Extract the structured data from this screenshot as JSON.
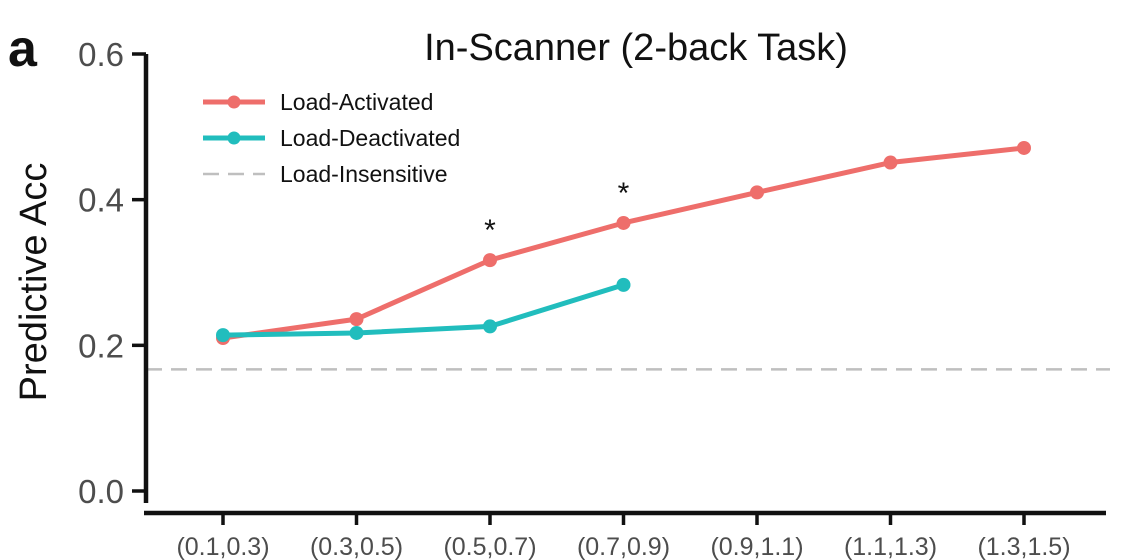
{
  "chart_data": {
    "type": "line",
    "panel_label": "a",
    "title": "In-Scanner (2-back Task)",
    "xlabel": "",
    "ylabel": "Predictive Acc",
    "categories": [
      "(0.1,0.3)",
      "(0.3,0.5)",
      "(0.5,0.7)",
      "(0.7,0.9)",
      "(0.9,1.1)",
      "(1.1,1.3)",
      "(1.3,1.5)"
    ],
    "ylim": [
      0.0,
      0.6
    ],
    "yticks": [
      "0.0",
      "0.2",
      "0.4",
      "0.6"
    ],
    "ytick_values": [
      0.0,
      0.2,
      0.4,
      0.6
    ],
    "series": [
      {
        "name": "Load-Activated",
        "color": "#ee6e6b",
        "values": [
          0.21,
          0.236,
          0.317,
          0.368,
          0.41,
          0.451,
          0.471
        ]
      },
      {
        "name": "Load-Deactivated",
        "color": "#21bdbd",
        "values": [
          0.214,
          0.217,
          0.226,
          0.283,
          null,
          null,
          null
        ]
      }
    ],
    "reference_line": {
      "name": "Load-Insensitive",
      "value": 0.167,
      "color": "#bfbfbf",
      "style": "dashed"
    },
    "annotations": [
      {
        "text": "*",
        "category_index": 2
      },
      {
        "text": "*",
        "category_index": 3
      }
    ],
    "legend_position": "top-left",
    "grid": false
  }
}
